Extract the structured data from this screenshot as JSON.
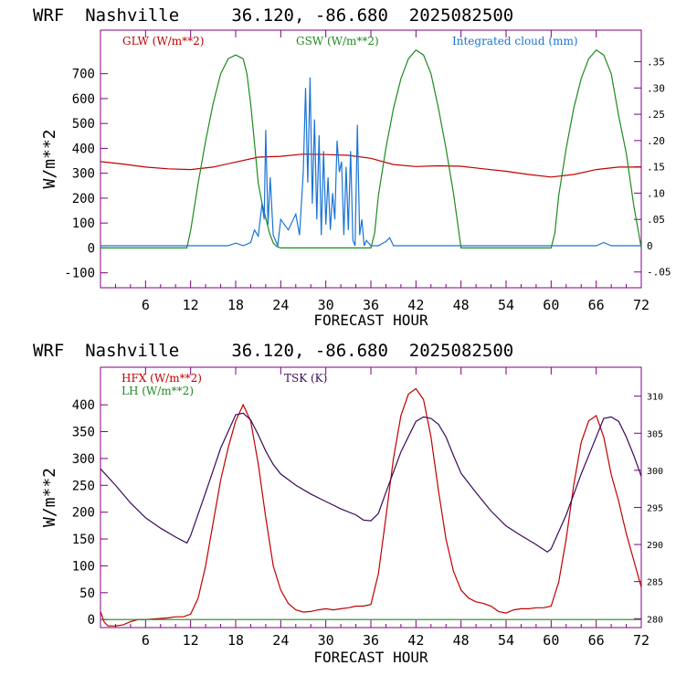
{
  "charts": [
    {
      "title": "WRF  Nashville     36.120, -86.680  2025082500",
      "xlabel": "FORECAST HOUR",
      "ylabel": "W/m**2",
      "legend": [
        {
          "label": "GLW (W/m**2)",
          "color": "#c00000"
        },
        {
          "label": "GSW (W/m**2)",
          "color": "#1f8a1f"
        },
        {
          "label": "Integrated cloud (mm)",
          "color": "#1a73d4"
        }
      ]
    },
    {
      "title": "WRF  Nashville     36.120, -86.680  2025082500",
      "xlabel": "FORECAST HOUR",
      "ylabel": "W/m**2",
      "legend": [
        {
          "label": "HFX (W/m**2)",
          "color": "#c00000"
        },
        {
          "label": "LH  (W/m**2)",
          "color": "#1f8a1f"
        },
        {
          "label": "TSK (K)",
          "color": "#3a0a5a"
        }
      ]
    }
  ],
  "chart_data": [
    {
      "type": "line",
      "title": "WRF  Nashville     36.120, -86.680  2025082500",
      "xlabel": "FORECAST HOUR",
      "ylabel": "W/m**2",
      "xlim": [
        0,
        72
      ],
      "ylim": [
        -160,
        875
      ],
      "x_ticks": [
        6,
        12,
        18,
        24,
        30,
        36,
        42,
        48,
        54,
        60,
        66,
        72
      ],
      "y_ticks": [
        -100,
        0,
        100,
        200,
        300,
        400,
        500,
        600,
        700
      ],
      "y2_ticks": [
        ".35",
        ".30",
        ".25",
        ".20",
        ".15",
        ".10",
        ".05",
        "0",
        "-.05"
      ],
      "y2_values": [
        0.35,
        0.3,
        0.25,
        0.2,
        0.15,
        0.1,
        0.05,
        0,
        -0.05
      ],
      "y2lim": [
        -0.08,
        0.41
      ],
      "grid": false,
      "series": [
        {
          "name": "GLW (W/m**2)",
          "color": "#c00000",
          "axis": "left",
          "x": [
            0,
            3,
            6,
            9,
            12,
            15,
            18,
            21,
            24,
            27,
            30,
            33,
            36,
            39,
            42,
            45,
            48,
            51,
            54,
            57,
            60,
            63,
            66,
            69,
            72
          ],
          "y": [
            347,
            337,
            325,
            318,
            315,
            325,
            345,
            365,
            368,
            377,
            375,
            372,
            360,
            335,
            327,
            330,
            328,
            318,
            308,
            295,
            285,
            295,
            315,
            325,
            325
          ]
        },
        {
          "name": "GSW (W/m**2)",
          "color": "#1f8a1f",
          "axis": "left",
          "x": [
            0,
            11.5,
            12,
            13,
            14,
            15,
            16,
            17,
            18,
            19,
            19.5,
            20,
            20.5,
            21,
            21.5,
            22,
            22.5,
            23,
            23.5,
            24,
            36,
            36.5,
            37,
            38,
            39,
            40,
            41,
            42,
            43,
            44,
            45,
            46,
            47,
            48,
            60,
            60.5,
            61,
            62,
            63,
            64,
            65,
            66,
            67,
            68,
            69,
            70,
            71,
            72
          ],
          "y": [
            0,
            0,
            70,
            260,
            430,
            580,
            700,
            760,
            775,
            760,
            700,
            580,
            420,
            260,
            180,
            120,
            60,
            20,
            5,
            0,
            0,
            60,
            210,
            400,
            560,
            680,
            760,
            795,
            775,
            700,
            560,
            400,
            220,
            0,
            0,
            60,
            210,
            400,
            560,
            680,
            760,
            795,
            775,
            700,
            530,
            380,
            170,
            0
          ]
        },
        {
          "name": "Integrated cloud (mm)",
          "color": "#1a73d4",
          "axis": "right",
          "x": [
            0,
            5,
            17,
            18,
            19,
            20,
            20.5,
            21,
            21.5,
            21.8,
            22,
            22.3,
            22.6,
            23,
            23.3,
            23.6,
            24,
            25,
            26,
            26.5,
            27,
            27.3,
            27.6,
            27.9,
            28.2,
            28.5,
            28.8,
            29.1,
            29.4,
            29.7,
            30,
            30.3,
            30.6,
            30.9,
            31.2,
            31.5,
            31.8,
            32.1,
            32.4,
            32.7,
            33,
            33.3,
            33.6,
            33.9,
            34.2,
            34.5,
            34.8,
            35.1,
            35.4,
            36,
            37,
            38,
            38.5,
            39,
            40,
            66,
            67,
            68,
            72
          ],
          "y": [
            0,
            0,
            0,
            0.005,
            0.0,
            0.006,
            0.03,
            0.018,
            0.08,
            0.05,
            0.22,
            0.04,
            0.13,
            0.02,
            0.01,
            0.0,
            0.05,
            0.03,
            0.06,
            0.02,
            0.14,
            0.3,
            0.12,
            0.32,
            0.08,
            0.24,
            0.05,
            0.21,
            0.02,
            0.18,
            0.04,
            0.13,
            0.03,
            0.1,
            0.05,
            0.2,
            0.14,
            0.16,
            0.02,
            0.15,
            0.03,
            0.18,
            0.01,
            0.0,
            0.23,
            0.02,
            0.05,
            0.0,
            0.01,
            0.0,
            0.0,
            0.008,
            0.015,
            0.0,
            0.0,
            0.0,
            0.006,
            0.0,
            0.0
          ]
        }
      ]
    },
    {
      "type": "line",
      "title": "WRF  Nashville     36.120, -86.680  2025082500",
      "xlabel": "FORECAST HOUR",
      "ylabel": "W/m**2",
      "xlim": [
        0,
        72
      ],
      "ylim": [
        -15,
        470
      ],
      "x_ticks": [
        6,
        12,
        18,
        24,
        30,
        36,
        42,
        48,
        54,
        60,
        66,
        72
      ],
      "y_ticks": [
        0,
        50,
        100,
        150,
        200,
        250,
        300,
        350,
        400
      ],
      "y2_ticks": [
        "310",
        "305",
        "300",
        "295",
        "290",
        "285",
        "280"
      ],
      "y2_values": [
        310,
        305,
        300,
        295,
        290,
        285,
        280
      ],
      "y2lim": [
        278.8,
        313.9
      ],
      "grid": false,
      "series": [
        {
          "name": "HFX (W/m**2)",
          "color": "#c00000",
          "axis": "left",
          "x": [
            0,
            0.5,
            1,
            2,
            3,
            4,
            5,
            6,
            7,
            8,
            9,
            10,
            11,
            12,
            13,
            14,
            15,
            16,
            17,
            18,
            19,
            20,
            21,
            22,
            23,
            24,
            25,
            26,
            27,
            28,
            29,
            30,
            31,
            32,
            33,
            34,
            35,
            36,
            37,
            38,
            39,
            40,
            41,
            42,
            43,
            44,
            45,
            46,
            47,
            48,
            49,
            50,
            51,
            52,
            53,
            54,
            55,
            56,
            57,
            58,
            59,
            60,
            61,
            62,
            63,
            64,
            65,
            66,
            67,
            68,
            69,
            70,
            71,
            72
          ],
          "y": [
            15,
            -5,
            -12,
            -12,
            -10,
            -4,
            0,
            0,
            1,
            2,
            3,
            5,
            5,
            10,
            40,
            100,
            180,
            260,
            320,
            370,
            400,
            370,
            290,
            190,
            100,
            55,
            30,
            18,
            14,
            15,
            18,
            20,
            18,
            20,
            22,
            25,
            25,
            28,
            85,
            190,
            300,
            380,
            420,
            430,
            410,
            340,
            240,
            150,
            90,
            55,
            40,
            33,
            30,
            25,
            15,
            12,
            18,
            20,
            20,
            22,
            22,
            25,
            70,
            150,
            250,
            330,
            370,
            380,
            340,
            270,
            220,
            160,
            110,
            60
          ]
        },
        {
          "name": "LH  (W/m**2)",
          "color": "#1f8a1f",
          "axis": "left",
          "x": [
            0,
            72
          ],
          "y": [
            0,
            0
          ]
        },
        {
          "name": "TSK (K)",
          "color": "#3a0a5a",
          "axis": "right",
          "x": [
            0,
            2,
            4,
            6,
            8,
            10,
            11.5,
            12,
            14,
            16,
            18,
            19,
            20,
            21,
            22,
            23,
            24,
            26,
            28,
            30,
            32,
            34,
            35,
            36,
            37,
            38,
            40,
            42,
            43,
            44,
            45,
            46,
            47,
            48,
            50,
            52,
            54,
            56,
            58,
            59.5,
            60,
            62,
            64,
            66,
            67,
            68,
            69,
            70,
            71,
            72
          ],
          "y": [
            300.2,
            298.0,
            295.6,
            293.6,
            292.2,
            291.0,
            290.2,
            291.2,
            297.0,
            303.0,
            307.5,
            307.7,
            306.8,
            304.8,
            302.6,
            300.8,
            299.5,
            298.0,
            296.8,
            295.8,
            294.8,
            294.0,
            293.3,
            293.2,
            294.2,
            297.0,
            302.5,
            306.6,
            307.2,
            307.0,
            306.2,
            304.5,
            302.0,
            299.6,
            297.0,
            294.5,
            292.5,
            291.2,
            290.0,
            289.0,
            289.4,
            294.0,
            299.5,
            304.5,
            307.0,
            307.2,
            306.6,
            304.5,
            302.0,
            299.2
          ]
        }
      ]
    }
  ]
}
